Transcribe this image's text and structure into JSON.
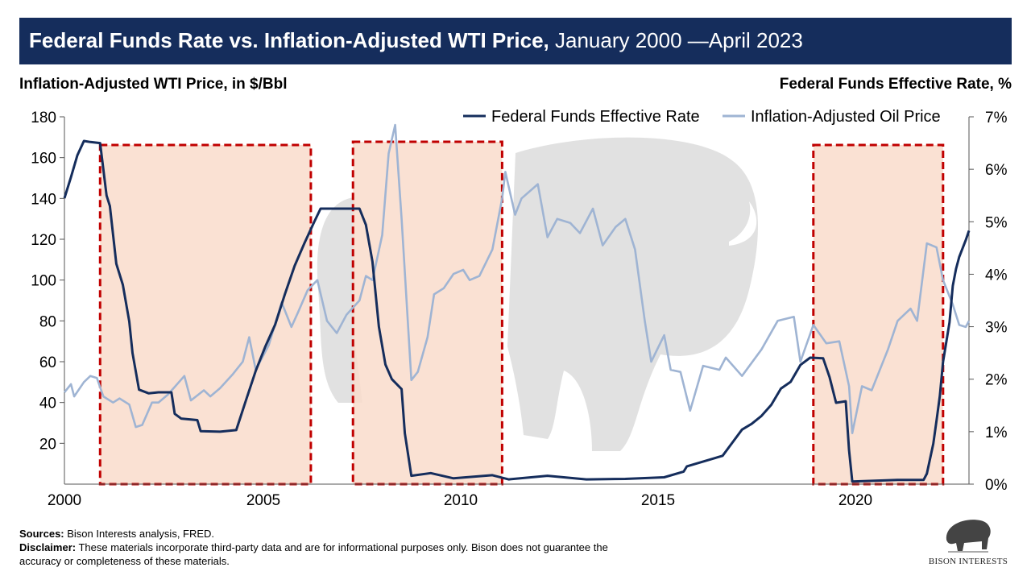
{
  "header": {
    "title_bold": "Federal Funds Rate vs. Inflation-Adjusted WTI Price,",
    "title_rest": " January 2000 —April 2023"
  },
  "footer": {
    "sources_label": "Sources:",
    "sources_text": " Bison Interests analysis, FRED.",
    "disclaimer_label": "Disclaimer:",
    "disclaimer_text": " These materials incorporate third-party data and are for informational purposes only. Bison does not guarantee the accuracy or completeness of these materials."
  },
  "logo": {
    "text": "BISON INTERESTS",
    "icon": "bison-icon"
  },
  "chart_data": {
    "type": "line",
    "ylabel_left": "Inflation-Adjusted WTI Price, in $/Bbl",
    "ylabel_right": "Federal Funds Effective Rate, %",
    "xlim": [
      "2000-01",
      "2023-04"
    ],
    "ylim_left": [
      0,
      180
    ],
    "ylim_right": [
      0,
      7
    ],
    "x_ticks": [
      "2000",
      "2005",
      "2010",
      "2015",
      "2020"
    ],
    "y_ticks_left": [
      "20",
      "40",
      "60",
      "80",
      "100",
      "120",
      "140",
      "160",
      "180"
    ],
    "y_ticks_right": [
      "0%",
      "1%",
      "2%",
      "3%",
      "4%",
      "5%",
      "6%",
      "7%"
    ],
    "legend_position": "top-right",
    "grid": false,
    "highlight_periods": [
      [
        "2000-12",
        "2006-05"
      ],
      [
        "2007-06",
        "2011-04"
      ],
      [
        "2019-04",
        "2022-08"
      ]
    ],
    "highlight_color": "#f9dccb",
    "highlight_border": "#c00000",
    "series": [
      {
        "name": "Federal Funds Effective Rate",
        "axis": "right",
        "color": "#152d5c",
        "points": [
          [
            "2000-01",
            5.45
          ],
          [
            "2000-03",
            5.85
          ],
          [
            "2000-05",
            6.27
          ],
          [
            "2000-07",
            6.54
          ],
          [
            "2000-09",
            6.52
          ],
          [
            "2000-12",
            6.5
          ],
          [
            "2001-02",
            5.5
          ],
          [
            "2001-03",
            5.3
          ],
          [
            "2001-05",
            4.2
          ],
          [
            "2001-07",
            3.8
          ],
          [
            "2001-09",
            3.1
          ],
          [
            "2001-10",
            2.5
          ],
          [
            "2001-12",
            1.8
          ],
          [
            "2002-03",
            1.73
          ],
          [
            "2002-06",
            1.75
          ],
          [
            "2002-10",
            1.75
          ],
          [
            "2002-11",
            1.34
          ],
          [
            "2003-01",
            1.25
          ],
          [
            "2003-06",
            1.22
          ],
          [
            "2003-07",
            1.01
          ],
          [
            "2004-01",
            1.0
          ],
          [
            "2004-06",
            1.03
          ],
          [
            "2004-09",
            1.6
          ],
          [
            "2004-12",
            2.16
          ],
          [
            "2005-03",
            2.63
          ],
          [
            "2005-06",
            3.04
          ],
          [
            "2005-09",
            3.62
          ],
          [
            "2005-12",
            4.16
          ],
          [
            "2006-03",
            4.59
          ],
          [
            "2006-06",
            4.99
          ],
          [
            "2006-08",
            5.25
          ],
          [
            "2007-08",
            5.25
          ],
          [
            "2007-10",
            4.94
          ],
          [
            "2007-12",
            4.24
          ],
          [
            "2008-02",
            3.0
          ],
          [
            "2008-04",
            2.28
          ],
          [
            "2008-06",
            2.0
          ],
          [
            "2008-09",
            1.81
          ],
          [
            "2008-10",
            0.97
          ],
          [
            "2008-12",
            0.16
          ],
          [
            "2009-06",
            0.21
          ],
          [
            "2010-01",
            0.11
          ],
          [
            "2011-01",
            0.17
          ],
          [
            "2011-06",
            0.09
          ],
          [
            "2012-06",
            0.16
          ],
          [
            "2013-06",
            0.09
          ],
          [
            "2014-06",
            0.1
          ],
          [
            "2015-06",
            0.13
          ],
          [
            "2015-12",
            0.24
          ],
          [
            "2016-01",
            0.34
          ],
          [
            "2016-12",
            0.54
          ],
          [
            "2017-03",
            0.79
          ],
          [
            "2017-06",
            1.04
          ],
          [
            "2017-09",
            1.15
          ],
          [
            "2017-12",
            1.3
          ],
          [
            "2018-03",
            1.51
          ],
          [
            "2018-06",
            1.82
          ],
          [
            "2018-09",
            1.95
          ],
          [
            "2018-12",
            2.27
          ],
          [
            "2019-03",
            2.41
          ],
          [
            "2019-07",
            2.4
          ],
          [
            "2019-09",
            2.04
          ],
          [
            "2019-11",
            1.55
          ],
          [
            "2020-02",
            1.58
          ],
          [
            "2020-03",
            0.65
          ],
          [
            "2020-04",
            0.05
          ],
          [
            "2021-06",
            0.08
          ],
          [
            "2022-02",
            0.08
          ],
          [
            "2022-03",
            0.2
          ],
          [
            "2022-05",
            0.77
          ],
          [
            "2022-06",
            1.21
          ],
          [
            "2022-07",
            1.68
          ],
          [
            "2022-08",
            2.33
          ],
          [
            "2022-10",
            3.08
          ],
          [
            "2022-11",
            3.78
          ],
          [
            "2022-12",
            4.1
          ],
          [
            "2023-01",
            4.33
          ],
          [
            "2023-03",
            4.65
          ],
          [
            "2023-04",
            4.83
          ]
        ]
      },
      {
        "name": "Inflation-Adjusted Oil Price",
        "axis": "left",
        "color": "#9fb4d3",
        "points": [
          [
            "2000-01",
            45
          ],
          [
            "2000-03",
            49
          ],
          [
            "2000-04",
            43
          ],
          [
            "2000-07",
            50
          ],
          [
            "2000-09",
            53
          ],
          [
            "2000-11",
            52
          ],
          [
            "2001-01",
            43
          ],
          [
            "2001-04",
            40
          ],
          [
            "2001-06",
            42
          ],
          [
            "2001-09",
            39
          ],
          [
            "2001-11",
            28
          ],
          [
            "2002-01",
            29
          ],
          [
            "2002-04",
            40
          ],
          [
            "2002-06",
            40
          ],
          [
            "2002-09",
            44
          ],
          [
            "2003-02",
            53
          ],
          [
            "2003-04",
            41
          ],
          [
            "2003-08",
            46
          ],
          [
            "2003-10",
            43
          ],
          [
            "2004-01",
            47
          ],
          [
            "2004-05",
            54
          ],
          [
            "2004-08",
            60
          ],
          [
            "2004-10",
            72
          ],
          [
            "2004-12",
            56
          ],
          [
            "2005-04",
            68
          ],
          [
            "2005-08",
            89
          ],
          [
            "2005-11",
            77
          ],
          [
            "2006-01",
            84
          ],
          [
            "2006-04",
            95
          ],
          [
            "2006-07",
            100
          ],
          [
            "2006-10",
            80
          ],
          [
            "2007-01",
            74
          ],
          [
            "2007-04",
            83
          ],
          [
            "2007-08",
            90
          ],
          [
            "2007-10",
            102
          ],
          [
            "2007-12",
            100
          ],
          [
            "2008-03",
            122
          ],
          [
            "2008-05",
            162
          ],
          [
            "2008-07",
            176
          ],
          [
            "2008-09",
            130
          ],
          [
            "2008-12",
            51
          ],
          [
            "2009-02",
            55
          ],
          [
            "2009-05",
            72
          ],
          [
            "2009-07",
            93
          ],
          [
            "2009-10",
            96
          ],
          [
            "2010-01",
            103
          ],
          [
            "2010-04",
            105
          ],
          [
            "2010-06",
            100
          ],
          [
            "2010-09",
            102
          ],
          [
            "2011-01",
            115
          ],
          [
            "2011-04",
            140
          ],
          [
            "2011-05",
            153
          ],
          [
            "2011-08",
            132
          ],
          [
            "2011-10",
            140
          ],
          [
            "2012-03",
            147
          ],
          [
            "2012-06",
            121
          ],
          [
            "2012-09",
            130
          ],
          [
            "2013-01",
            128
          ],
          [
            "2013-04",
            123
          ],
          [
            "2013-08",
            135
          ],
          [
            "2013-11",
            117
          ],
          [
            "2014-03",
            126
          ],
          [
            "2014-06",
            130
          ],
          [
            "2014-09",
            115
          ],
          [
            "2014-12",
            80
          ],
          [
            "2015-02",
            60
          ],
          [
            "2015-06",
            73
          ],
          [
            "2015-08",
            56
          ],
          [
            "2015-11",
            55
          ],
          [
            "2016-02",
            36
          ],
          [
            "2016-06",
            58
          ],
          [
            "2016-11",
            56
          ],
          [
            "2017-01",
            62
          ],
          [
            "2017-06",
            53
          ],
          [
            "2017-12",
            66
          ],
          [
            "2018-05",
            80
          ],
          [
            "2018-10",
            82
          ],
          [
            "2018-12",
            60
          ],
          [
            "2019-04",
            78
          ],
          [
            "2019-08",
            69
          ],
          [
            "2019-12",
            70
          ],
          [
            "2020-03",
            48
          ],
          [
            "2020-04",
            25
          ],
          [
            "2020-07",
            48
          ],
          [
            "2020-10",
            46
          ],
          [
            "2021-03",
            66
          ],
          [
            "2021-06",
            80
          ],
          [
            "2021-10",
            86
          ],
          [
            "2021-12",
            80
          ],
          [
            "2022-03",
            118
          ],
          [
            "2022-06",
            116
          ],
          [
            "2022-08",
            100
          ],
          [
            "2022-11",
            88
          ],
          [
            "2023-01",
            78
          ],
          [
            "2023-03",
            77
          ],
          [
            "2023-04",
            80
          ]
        ]
      }
    ]
  }
}
